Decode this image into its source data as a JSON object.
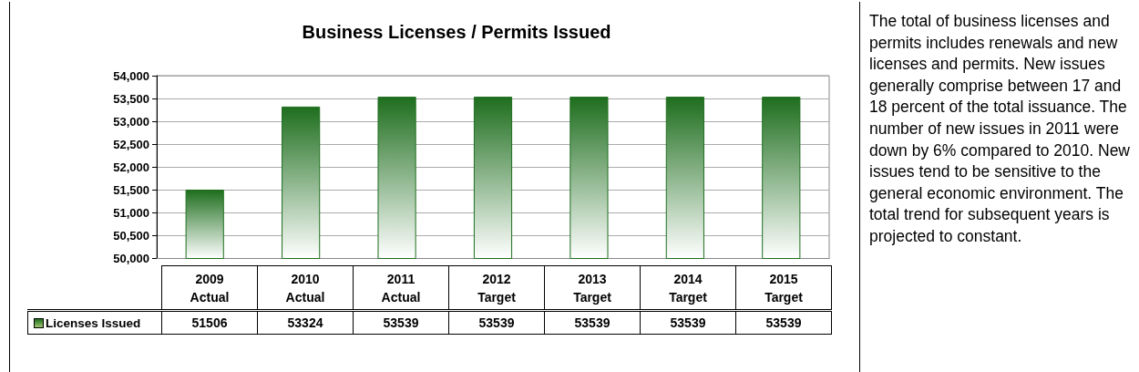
{
  "chart_data": {
    "type": "bar",
    "title": "Business Licenses / Permits Issued",
    "categories": [
      "2009\nActual",
      "2010\nActual",
      "2011\nActual",
      "2012\nTarget",
      "2013\nTarget",
      "2014\nTarget",
      "2015\nTarget"
    ],
    "series": [
      {
        "name": "Licenses Issued",
        "color": "#1e6e1e",
        "values": [
          51506,
          53324,
          53539,
          53539,
          53539,
          53539,
          53539
        ]
      }
    ],
    "ylim": [
      50000,
      54000
    ],
    "yticks": [
      {
        "value": 50000,
        "label": "50,000"
      },
      {
        "value": 50500,
        "label": "50,500"
      },
      {
        "value": 51000,
        "label": "51,000"
      },
      {
        "value": 51500,
        "label": "51,500"
      },
      {
        "value": 52000,
        "label": "52,000"
      },
      {
        "value": 52500,
        "label": "52,500"
      },
      {
        "value": 53000,
        "label": "53,000"
      },
      {
        "value": 53500,
        "label": "53,500"
      },
      {
        "value": 54000,
        "label": "54,000"
      }
    ],
    "grid": "y",
    "legend": "bottom",
    "data_labels": true,
    "annotations": [
      "The total of business licenses and permits includes renewals and new licenses and permits. New issues generally comprise between 17 and 18 percent of the total issuance. The number of new issues in 2011 were down by 6% compared to 2010. New issues tend to be sensitive to the general economic environment. The total trend for subsequent years is projected to constant."
    ]
  }
}
